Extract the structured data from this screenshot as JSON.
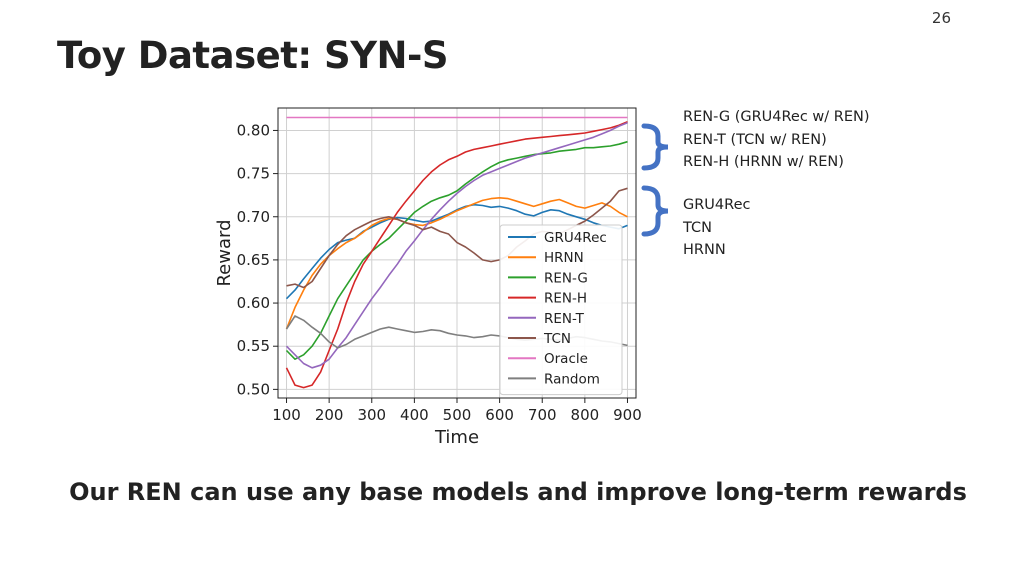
{
  "slide": {
    "page_number": "26",
    "title": "Toy Dataset: SYN-S",
    "conclusion": "Our REN can use any base models and improve long-term rewards"
  },
  "annotations": {
    "ren_group": [
      "REN-G (GRU4Rec w/ REN)",
      "REN-T (TCN w/ REN)",
      "REN-H (HRNN w/ REN)"
    ],
    "base_group": [
      "GRU4Rec",
      "TCN",
      "HRNN"
    ],
    "brace_color": "#4472c4"
  },
  "chart_data": {
    "type": "line",
    "xlabel": "Time",
    "ylabel": "Reward",
    "xlim": [
      80,
      920
    ],
    "ylim": [
      0.49,
      0.826
    ],
    "xticks": [
      100,
      200,
      300,
      400,
      500,
      600,
      700,
      800,
      900
    ],
    "yticks": [
      0.5,
      0.55,
      0.6,
      0.65,
      0.7,
      0.75,
      0.8
    ],
    "grid": true,
    "legend": "bottom-right",
    "series": [
      {
        "name": "GRU4Rec",
        "color": "#1f77b4",
        "x": [
          100,
          120,
          140,
          160,
          180,
          200,
          220,
          240,
          260,
          280,
          300,
          320,
          340,
          360,
          380,
          400,
          420,
          440,
          460,
          480,
          500,
          520,
          540,
          560,
          580,
          600,
          620,
          640,
          660,
          680,
          700,
          720,
          740,
          760,
          780,
          800,
          820,
          840,
          860,
          880,
          900
        ],
        "y": [
          0.605,
          0.615,
          0.628,
          0.64,
          0.652,
          0.662,
          0.67,
          0.673,
          0.675,
          0.683,
          0.688,
          0.693,
          0.697,
          0.699,
          0.698,
          0.696,
          0.694,
          0.695,
          0.699,
          0.703,
          0.708,
          0.712,
          0.714,
          0.713,
          0.711,
          0.712,
          0.71,
          0.707,
          0.703,
          0.701,
          0.705,
          0.708,
          0.707,
          0.703,
          0.7,
          0.697,
          0.693,
          0.69,
          0.688,
          0.686,
          0.69
        ]
      },
      {
        "name": "HRNN",
        "color": "#ff7f0e",
        "x": [
          100,
          120,
          140,
          160,
          180,
          200,
          220,
          240,
          260,
          280,
          300,
          320,
          340,
          360,
          380,
          400,
          420,
          440,
          460,
          480,
          500,
          520,
          540,
          560,
          580,
          600,
          620,
          640,
          660,
          680,
          700,
          720,
          740,
          760,
          780,
          800,
          820,
          840,
          860,
          880,
          900
        ],
        "y": [
          0.57,
          0.595,
          0.615,
          0.632,
          0.645,
          0.655,
          0.663,
          0.67,
          0.675,
          0.682,
          0.69,
          0.695,
          0.698,
          0.697,
          0.693,
          0.691,
          0.69,
          0.693,
          0.697,
          0.702,
          0.707,
          0.711,
          0.715,
          0.719,
          0.721,
          0.722,
          0.721,
          0.718,
          0.715,
          0.712,
          0.715,
          0.718,
          0.72,
          0.716,
          0.712,
          0.71,
          0.713,
          0.716,
          0.712,
          0.705,
          0.7
        ]
      },
      {
        "name": "REN-G",
        "color": "#2ca02c",
        "x": [
          100,
          120,
          140,
          160,
          180,
          200,
          220,
          240,
          260,
          280,
          300,
          320,
          340,
          360,
          380,
          400,
          420,
          440,
          460,
          480,
          500,
          520,
          540,
          560,
          580,
          600,
          620,
          640,
          660,
          680,
          700,
          720,
          740,
          760,
          780,
          800,
          820,
          840,
          860,
          880,
          900
        ],
        "y": [
          0.545,
          0.535,
          0.54,
          0.55,
          0.565,
          0.585,
          0.605,
          0.62,
          0.635,
          0.65,
          0.66,
          0.668,
          0.675,
          0.685,
          0.695,
          0.705,
          0.712,
          0.718,
          0.722,
          0.725,
          0.73,
          0.738,
          0.745,
          0.752,
          0.758,
          0.763,
          0.766,
          0.768,
          0.77,
          0.772,
          0.773,
          0.774,
          0.776,
          0.777,
          0.778,
          0.78,
          0.78,
          0.781,
          0.782,
          0.784,
          0.787
        ]
      },
      {
        "name": "REN-H",
        "color": "#d62728",
        "x": [
          100,
          120,
          140,
          160,
          180,
          200,
          220,
          240,
          260,
          280,
          300,
          320,
          340,
          360,
          380,
          400,
          420,
          440,
          460,
          480,
          500,
          520,
          540,
          560,
          580,
          600,
          620,
          640,
          660,
          680,
          700,
          720,
          740,
          760,
          780,
          800,
          820,
          840,
          860,
          880,
          900
        ],
        "y": [
          0.525,
          0.505,
          0.502,
          0.505,
          0.52,
          0.545,
          0.57,
          0.6,
          0.625,
          0.645,
          0.66,
          0.675,
          0.69,
          0.705,
          0.718,
          0.73,
          0.742,
          0.752,
          0.76,
          0.766,
          0.77,
          0.775,
          0.778,
          0.78,
          0.782,
          0.784,
          0.786,
          0.788,
          0.79,
          0.791,
          0.792,
          0.793,
          0.794,
          0.795,
          0.796,
          0.797,
          0.799,
          0.801,
          0.803,
          0.806,
          0.81
        ]
      },
      {
        "name": "REN-T",
        "color": "#9467bd",
        "x": [
          100,
          120,
          140,
          160,
          180,
          200,
          220,
          240,
          260,
          280,
          300,
          320,
          340,
          360,
          380,
          400,
          420,
          440,
          460,
          480,
          500,
          520,
          540,
          560,
          580,
          600,
          620,
          640,
          660,
          680,
          700,
          720,
          740,
          760,
          780,
          800,
          820,
          840,
          860,
          880,
          900
        ],
        "y": [
          0.55,
          0.54,
          0.53,
          0.525,
          0.528,
          0.535,
          0.548,
          0.56,
          0.575,
          0.59,
          0.605,
          0.618,
          0.632,
          0.645,
          0.66,
          0.672,
          0.685,
          0.697,
          0.708,
          0.718,
          0.727,
          0.735,
          0.742,
          0.748,
          0.752,
          0.756,
          0.76,
          0.764,
          0.768,
          0.771,
          0.774,
          0.777,
          0.78,
          0.783,
          0.786,
          0.789,
          0.792,
          0.796,
          0.8,
          0.805,
          0.809
        ]
      },
      {
        "name": "TCN",
        "color": "#8c564b",
        "x": [
          100,
          120,
          140,
          160,
          180,
          200,
          220,
          240,
          260,
          280,
          300,
          320,
          340,
          360,
          380,
          400,
          420,
          440,
          460,
          480,
          500,
          520,
          540,
          560,
          580,
          600,
          620,
          640,
          660,
          680,
          700,
          720,
          740,
          760,
          780,
          800,
          820,
          840,
          860,
          880,
          900
        ],
        "y": [
          0.62,
          0.622,
          0.618,
          0.625,
          0.64,
          0.655,
          0.668,
          0.678,
          0.685,
          0.69,
          0.695,
          0.698,
          0.7,
          0.697,
          0.693,
          0.69,
          0.685,
          0.688,
          0.683,
          0.68,
          0.67,
          0.665,
          0.658,
          0.65,
          0.648,
          0.65,
          0.655,
          0.665,
          0.672,
          0.68,
          0.683,
          0.682,
          0.68,
          0.685,
          0.69,
          0.695,
          0.702,
          0.71,
          0.718,
          0.73,
          0.733
        ]
      },
      {
        "name": "Oracle",
        "color": "#e377c2",
        "x": [
          100,
          900
        ],
        "y": [
          0.815,
          0.815
        ]
      },
      {
        "name": "Random",
        "color": "#7f7f7f",
        "x": [
          100,
          120,
          140,
          160,
          180,
          200,
          220,
          240,
          260,
          280,
          300,
          320,
          340,
          360,
          380,
          400,
          420,
          440,
          460,
          480,
          500,
          520,
          540,
          560,
          580,
          600,
          620,
          640,
          660,
          680,
          700,
          720,
          740,
          760,
          780,
          800,
          820,
          840,
          860,
          880,
          900
        ],
        "y": [
          0.57,
          0.585,
          0.58,
          0.572,
          0.565,
          0.555,
          0.548,
          0.552,
          0.558,
          0.562,
          0.566,
          0.57,
          0.572,
          0.57,
          0.568,
          0.566,
          0.567,
          0.569,
          0.568,
          0.565,
          0.563,
          0.562,
          0.56,
          0.561,
          0.563,
          0.562,
          0.56,
          0.558,
          0.557,
          0.558,
          0.559,
          0.558,
          0.557,
          0.559,
          0.561,
          0.56,
          0.558,
          0.556,
          0.555,
          0.553,
          0.551
        ]
      }
    ]
  }
}
